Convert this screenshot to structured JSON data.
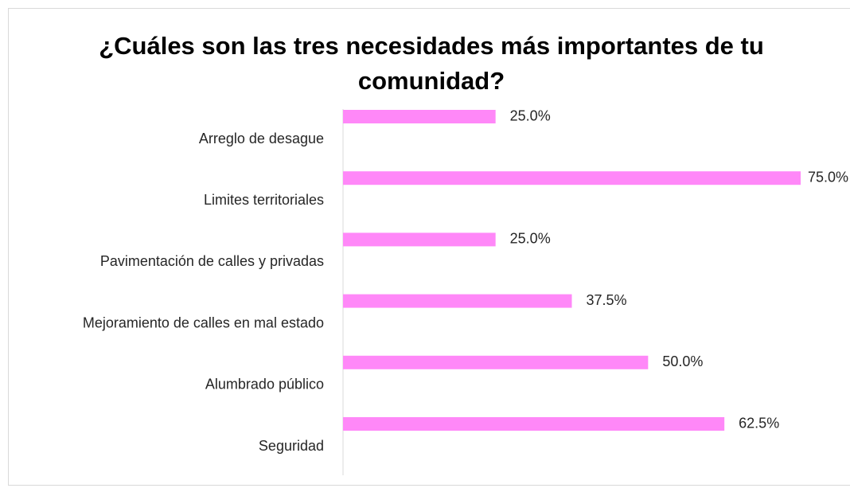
{
  "chart_data": {
    "type": "bar",
    "orientation": "horizontal",
    "title": "¿Cuáles son las tres necesidades más importantes de tu comunidad?",
    "categories": [
      "Arreglo de desague",
      "Limites territoriales",
      "Pavimentación de calles y privadas",
      "Mejoramiento de calles en mal estado",
      "Alumbrado público",
      "Seguridad"
    ],
    "values": [
      25,
      75,
      25,
      37.5,
      50,
      62.5
    ],
    "value_labels": [
      "25.0%",
      "75.0%",
      "25.0%",
      "37.5%",
      "50.0%",
      "62.5%"
    ],
    "color": "#ff88f8",
    "xlim": [
      0,
      75
    ]
  }
}
